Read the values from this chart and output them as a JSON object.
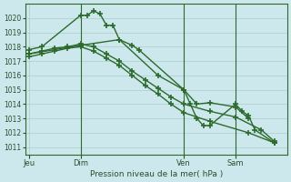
{
  "background_color": "#cce8ec",
  "grid_color": "#aacccc",
  "line_color": "#2d6a2d",
  "ylabel": "Pression niveau de la mer( hPa )",
  "ylim": [
    1010.5,
    1021.0
  ],
  "yticks": [
    1011,
    1012,
    1013,
    1014,
    1015,
    1016,
    1017,
    1018,
    1019,
    1020
  ],
  "xtick_labels": [
    "Jeu",
    "Dim",
    "Ven",
    "Sam"
  ],
  "xtick_positions": [
    0,
    4,
    12,
    16
  ],
  "vline_positions": [
    4,
    12,
    16
  ],
  "xlim": [
    -0.3,
    20
  ],
  "series1_x": [
    0,
    1,
    4,
    4.5,
    5,
    5.5,
    6,
    6.5,
    7,
    8,
    8.5,
    12,
    13,
    14,
    16,
    17
  ],
  "series1_y": [
    1017.8,
    1018.0,
    1020.2,
    1020.2,
    1020.5,
    1020.3,
    1019.5,
    1019.5,
    1018.5,
    1018.1,
    1017.8,
    1015.0,
    1014.0,
    1014.1,
    1013.8,
    1013.0
  ],
  "series2_x": [
    0,
    1,
    2,
    3,
    4,
    5,
    6,
    7,
    8,
    9,
    10,
    11,
    12,
    14,
    16,
    18,
    19
  ],
  "series2_y": [
    1017.5,
    1017.7,
    1017.9,
    1018.0,
    1018.2,
    1018.0,
    1017.5,
    1017.0,
    1016.3,
    1015.7,
    1015.1,
    1014.5,
    1014.0,
    1013.5,
    1013.1,
    1012.2,
    1011.4
  ],
  "series3_x": [
    0,
    1,
    2,
    3,
    4,
    5,
    6,
    7,
    8,
    9,
    10,
    11,
    12,
    14,
    17,
    19
  ],
  "series3_y": [
    1017.3,
    1017.5,
    1017.7,
    1017.9,
    1018.0,
    1017.7,
    1017.2,
    1016.7,
    1016.0,
    1015.3,
    1014.7,
    1014.0,
    1013.4,
    1012.8,
    1012.0,
    1011.3
  ],
  "series4_x": [
    0,
    4,
    7,
    10,
    12,
    12.5,
    13,
    13.5,
    14,
    16,
    16.5,
    17,
    17.5,
    19
  ],
  "series4_y": [
    1017.5,
    1018.1,
    1018.5,
    1016.0,
    1015.0,
    1014.0,
    1013.0,
    1012.5,
    1012.5,
    1014.0,
    1013.5,
    1013.2,
    1012.2,
    1011.3
  ]
}
